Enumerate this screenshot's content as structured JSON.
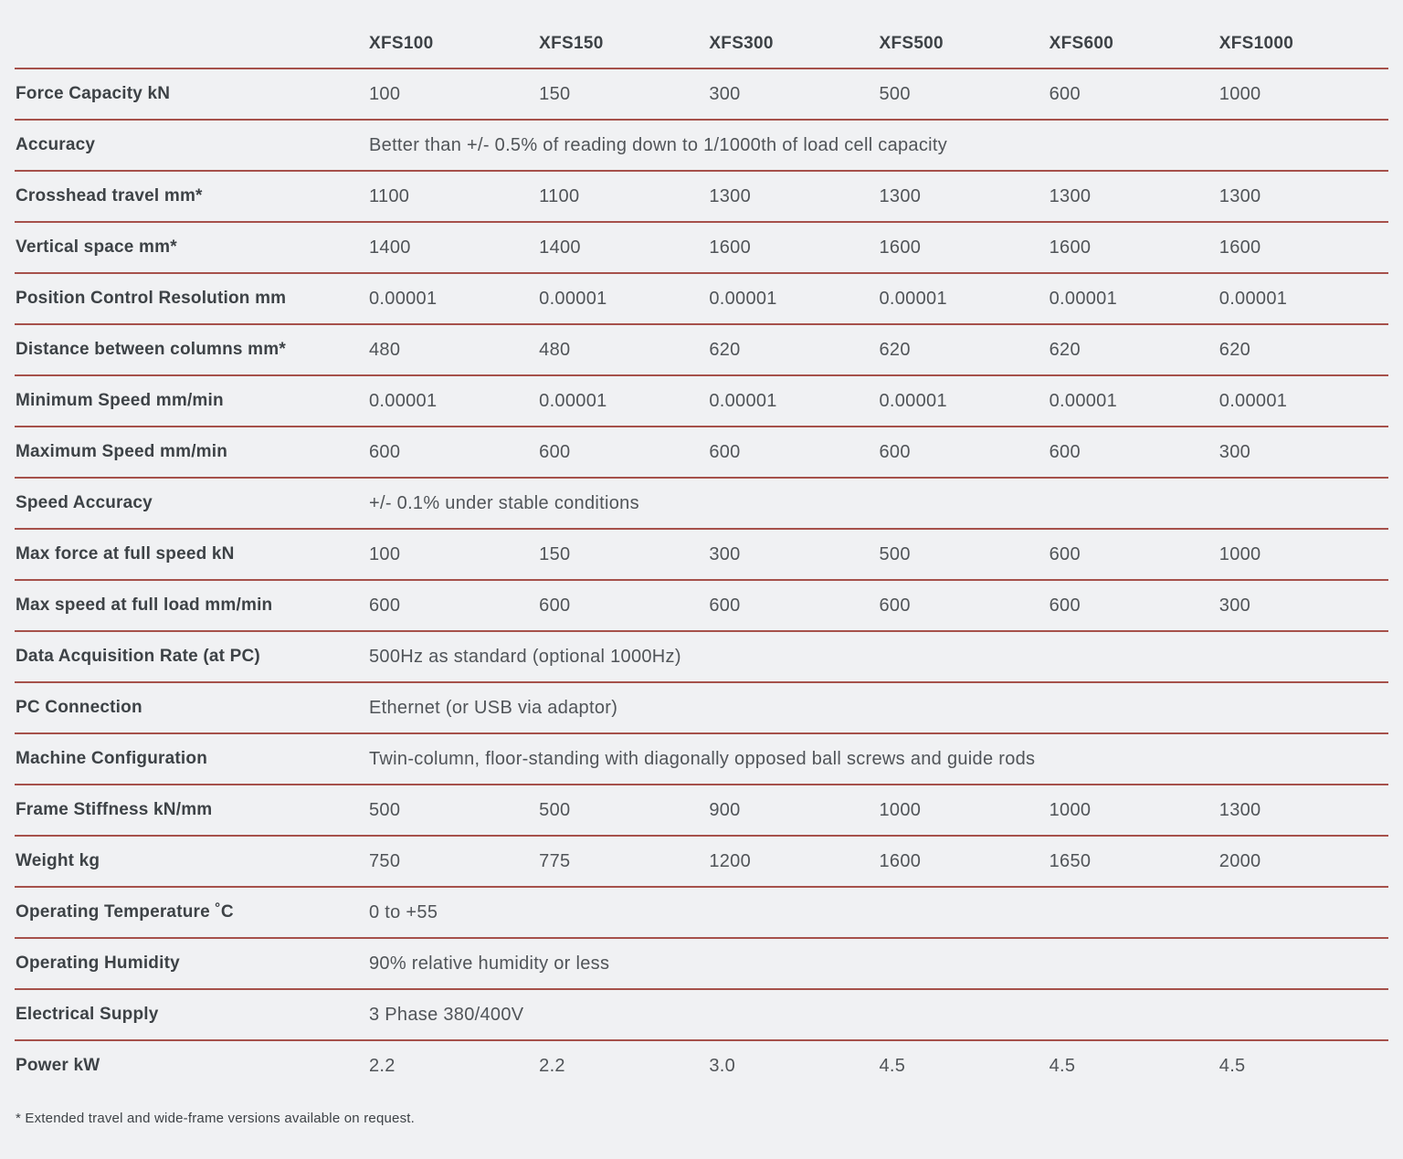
{
  "page": {
    "background_color": "#f0f1f3",
    "line_color": "#a6514b",
    "label_text_color": "#3d4246",
    "value_text_color": "#505458"
  },
  "table": {
    "column_headers": [
      "XFS100",
      "XFS150",
      "XFS300",
      "XFS500",
      "XFS600",
      "XFS1000"
    ],
    "rows": [
      {
        "label": "Force Capacity kN",
        "values": [
          "100",
          "150",
          "300",
          "500",
          "600",
          "1000"
        ]
      },
      {
        "label": "Accuracy",
        "span": "Better than +/- 0.5% of reading down to 1/1000th of load cell capacity"
      },
      {
        "label": "Crosshead travel mm*",
        "values": [
          "1100",
          "1100",
          "1300",
          "1300",
          "1300",
          "1300"
        ]
      },
      {
        "label": "Vertical space mm*",
        "values": [
          "1400",
          "1400",
          "1600",
          "1600",
          "1600",
          "1600"
        ]
      },
      {
        "label": "Position Control Resolution mm",
        "values": [
          "0.00001",
          "0.00001",
          "0.00001",
          "0.00001",
          "0.00001",
          "0.00001"
        ]
      },
      {
        "label": "Distance between columns mm*",
        "values": [
          "480",
          "480",
          "620",
          "620",
          "620",
          "620"
        ]
      },
      {
        "label": "Minimum Speed mm/min",
        "values": [
          "0.00001",
          "0.00001",
          "0.00001",
          "0.00001",
          "0.00001",
          "0.00001"
        ]
      },
      {
        "label": "Maximum Speed mm/min",
        "values": [
          "600",
          "600",
          "600",
          "600",
          "600",
          "300"
        ]
      },
      {
        "label": "Speed Accuracy",
        "span": "+/- 0.1% under stable conditions"
      },
      {
        "label": "Max force at full speed kN",
        "values": [
          "100",
          "150",
          "300",
          "500",
          "600",
          "1000"
        ]
      },
      {
        "label": "Max speed at full load mm/min",
        "values": [
          "600",
          "600",
          "600",
          "600",
          "600",
          "300"
        ]
      },
      {
        "label": "Data Acquisition Rate (at PC)",
        "span": "500Hz as standard (optional 1000Hz)"
      },
      {
        "label": "PC Connection",
        "span": "Ethernet (or USB via adaptor)"
      },
      {
        "label": "Machine Configuration",
        "span": "Twin-column, floor-standing with diagonally opposed ball screws and guide rods"
      },
      {
        "label": "Frame Stiffness kN/mm",
        "values": [
          "500",
          "500",
          "900",
          "1000",
          "1000",
          "1300"
        ]
      },
      {
        "label": "Weight kg",
        "values": [
          "750",
          "775",
          "1200",
          "1600",
          "1650",
          "2000"
        ]
      },
      {
        "label": "Operating Temperature ˚C",
        "span": "0 to +55"
      },
      {
        "label": "Operating Humidity",
        "span": "90% relative humidity or less"
      },
      {
        "label": "Electrical Supply",
        "span": "3 Phase 380/400V"
      },
      {
        "label": "Power kW",
        "values": [
          "2.2",
          "2.2",
          "3.0",
          "4.5",
          "4.5",
          "4.5"
        ]
      }
    ],
    "footnote": "* Extended travel and wide-frame versions available on request."
  }
}
